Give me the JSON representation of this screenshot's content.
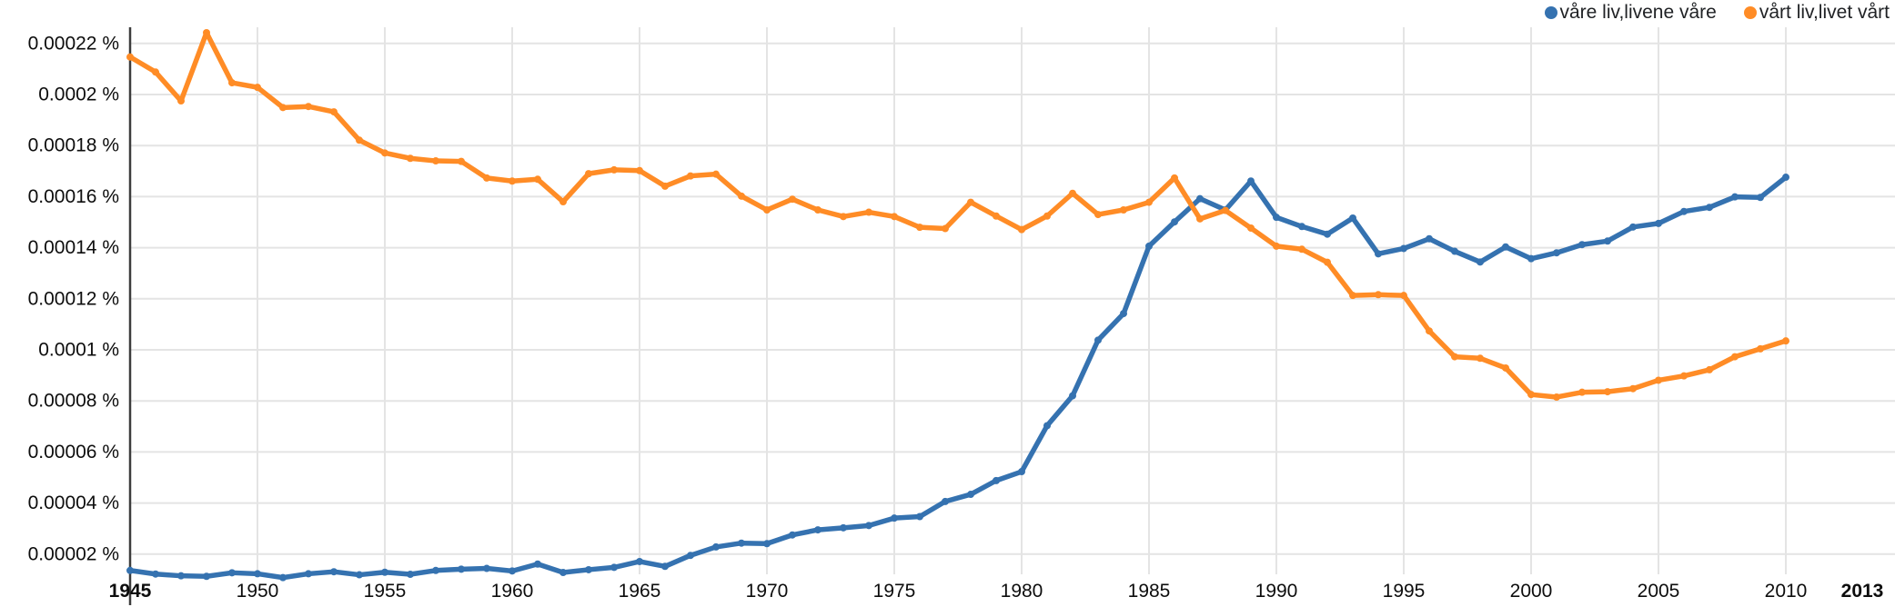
{
  "chart_data": {
    "type": "line",
    "title": "",
    "xlabel": "",
    "ylabel": "",
    "grid": true,
    "legend_position": "top-right",
    "x_range": [
      1945,
      2013
    ],
    "y_range": [
      0,
      0.000225
    ],
    "x": [
      1945,
      1946,
      1947,
      1948,
      1949,
      1950,
      1951,
      1952,
      1953,
      1954,
      1955,
      1956,
      1957,
      1958,
      1959,
      1960,
      1961,
      1962,
      1963,
      1964,
      1965,
      1966,
      1967,
      1968,
      1969,
      1970,
      1971,
      1972,
      1973,
      1974,
      1975,
      1976,
      1977,
      1978,
      1979,
      1980,
      1981,
      1982,
      1983,
      1984,
      1985,
      1986,
      1987,
      1988,
      1989,
      1990,
      1991,
      1992,
      1993,
      1994,
      1995,
      1996,
      1997,
      1998,
      1999,
      2000,
      2001,
      2002,
      2003,
      2004,
      2005,
      2006,
      2007,
      2008,
      2009,
      2010
    ],
    "series": [
      {
        "name": "våre liv,livene våre",
        "color": "#3572b0",
        "values": [
          1.36e-05,
          1.22e-05,
          1.15e-05,
          1.13e-05,
          1.27e-05,
          1.23e-05,
          1.08e-05,
          1.23e-05,
          1.31e-05,
          1.19e-05,
          1.29e-05,
          1.21e-05,
          1.36e-05,
          1.41e-05,
          1.44e-05,
          1.34e-05,
          1.61e-05,
          1.28e-05,
          1.39e-05,
          1.48e-05,
          1.71e-05,
          1.52e-05,
          1.95e-05,
          2.28e-05,
          2.43e-05,
          2.41e-05,
          2.75e-05,
          2.95e-05,
          3.03e-05,
          3.12e-05,
          3.41e-05,
          3.47e-05,
          4.06e-05,
          4.34e-05,
          4.88e-05,
          5.23e-05,
          7.03e-05,
          8.2e-05,
          0.0001038,
          0.0001142,
          0.0001406,
          0.0001501,
          0.0001592,
          0.0001548,
          0.0001661,
          0.0001519,
          0.0001483,
          0.0001453,
          0.0001516,
          0.0001376,
          0.0001397,
          0.0001435,
          0.0001386,
          0.0001344,
          0.0001403,
          0.0001357,
          0.000138,
          0.0001412,
          0.0001426,
          0.0001481,
          0.0001495,
          0.0001542,
          0.0001558,
          0.0001599,
          0.0001597,
          0.0001676
        ]
      },
      {
        "name": "vårt liv,livet vårt",
        "color": "#ff8c26",
        "values": [
          0.0002147,
          0.0002088,
          0.0001975,
          0.0002242,
          0.0002046,
          0.0002028,
          0.0001949,
          0.0001953,
          0.0001932,
          0.0001821,
          0.0001771,
          0.000175,
          0.000174,
          0.0001738,
          0.0001673,
          0.0001661,
          0.0001668,
          0.000158,
          0.000169,
          0.0001705,
          0.0001702,
          0.0001641,
          0.0001681,
          0.0001688,
          0.0001602,
          0.0001548,
          0.000159,
          0.0001548,
          0.0001522,
          0.0001539,
          0.0001522,
          0.000148,
          0.0001475,
          0.0001578,
          0.0001524,
          0.0001471,
          0.0001524,
          0.0001613,
          0.000153,
          0.0001548,
          0.0001578,
          0.0001673,
          0.0001513,
          0.0001546,
          0.0001477,
          0.0001406,
          0.0001394,
          0.0001343,
          0.0001213,
          0.0001216,
          0.0001213,
          0.0001074,
          9.73e-05,
          9.67e-05,
          9.29e-05,
          8.25e-05,
          8.15e-05,
          8.34e-05,
          8.36e-05,
          8.48e-05,
          8.81e-05,
          8.98e-05,
          9.22e-05,
          9.73e-05,
          0.0001004,
          0.0001035
        ]
      }
    ],
    "y_axis": {
      "ticks": [
        {
          "value": 2e-05,
          "label": "0.00002 %"
        },
        {
          "value": 4e-05,
          "label": "0.00004 %"
        },
        {
          "value": 6e-05,
          "label": "0.00006 %"
        },
        {
          "value": 8e-05,
          "label": "0.00008 %"
        },
        {
          "value": 0.0001,
          "label": "0.0001 %"
        },
        {
          "value": 0.00012,
          "label": "0.00012 %"
        },
        {
          "value": 0.00014,
          "label": "0.00014 %"
        },
        {
          "value": 0.00016,
          "label": "0.00016 %"
        },
        {
          "value": 0.00018,
          "label": "0.00018 %"
        },
        {
          "value": 0.0002,
          "label": "0.0002 %"
        },
        {
          "value": 0.00022,
          "label": "0.00022 %"
        }
      ]
    },
    "x_axis": {
      "ticks": [
        {
          "year": 1945,
          "label": "1945",
          "bold": true,
          "gridline": false
        },
        {
          "year": 1950,
          "label": "1950",
          "bold": false,
          "gridline": true
        },
        {
          "year": 1955,
          "label": "1955",
          "bold": false,
          "gridline": true
        },
        {
          "year": 1960,
          "label": "1960",
          "bold": false,
          "gridline": true
        },
        {
          "year": 1965,
          "label": "1965",
          "bold": false,
          "gridline": true
        },
        {
          "year": 1970,
          "label": "1970",
          "bold": false,
          "gridline": true
        },
        {
          "year": 1975,
          "label": "1975",
          "bold": false,
          "gridline": true
        },
        {
          "year": 1980,
          "label": "1980",
          "bold": false,
          "gridline": true
        },
        {
          "year": 1985,
          "label": "1985",
          "bold": false,
          "gridline": true
        },
        {
          "year": 1990,
          "label": "1990",
          "bold": false,
          "gridline": true
        },
        {
          "year": 1995,
          "label": "1995",
          "bold": false,
          "gridline": true
        },
        {
          "year": 2000,
          "label": "2000",
          "bold": false,
          "gridline": true
        },
        {
          "year": 2005,
          "label": "2005",
          "bold": false,
          "gridline": true
        },
        {
          "year": 2010,
          "label": "2010",
          "bold": false,
          "gridline": true
        },
        {
          "year": 2013,
          "label": "2013",
          "bold": true,
          "gridline": false
        }
      ]
    },
    "colors": {
      "gridline": "#e4e4e4",
      "axis_line": "#3d3d3d",
      "tick_label": "#0d0d0d",
      "legend_text": "#1f2124"
    }
  },
  "legend": {
    "items": [
      {
        "label": "våre liv,livene våre"
      },
      {
        "label": "vårt liv,livet vårt"
      }
    ]
  }
}
